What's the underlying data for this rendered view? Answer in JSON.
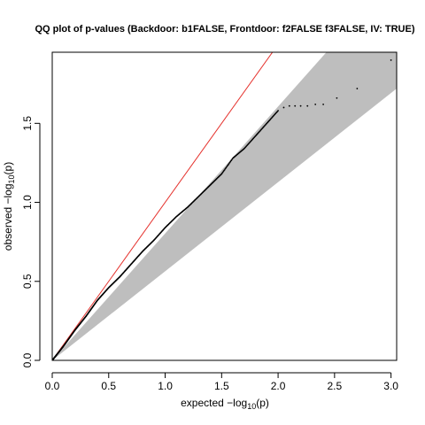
{
  "chart_data": {
    "type": "scatter",
    "title": "QQ plot of p-values (Backdoor: b1FALSE, Frontdoor: f2FALSE f3FALSE, IV: TRUE)",
    "xlabel": {
      "prefix": "expected ",
      "minus": "−",
      "log": "log",
      "sub": "10",
      "arg": "(p)"
    },
    "ylabel": {
      "prefix": "observed ",
      "minus": "−",
      "log": "log",
      "sub": "10",
      "arg": "(p)"
    },
    "xlim": [
      0,
      3.05
    ],
    "ylim": [
      0,
      1.95
    ],
    "x_ticks": [
      {
        "v": 0,
        "label": "0.0"
      },
      {
        "v": 0.5,
        "label": "0.5"
      },
      {
        "v": 1,
        "label": "1.0"
      },
      {
        "v": 1.5,
        "label": "1.5"
      },
      {
        "v": 2,
        "label": "2.0"
      },
      {
        "v": 2.5,
        "label": "2.5"
      },
      {
        "v": 3,
        "label": "3.0"
      }
    ],
    "y_ticks": [
      {
        "v": 0,
        "label": "0.0"
      },
      {
        "v": 0.5,
        "label": "0.5"
      },
      {
        "v": 1,
        "label": "1.0"
      },
      {
        "v": 1.5,
        "label": "1.5"
      }
    ],
    "reference_line": {
      "slope": 1,
      "intercept": 0,
      "color": "#e5322d"
    },
    "confidence_band": {
      "color": "#bebebe",
      "upper_at_xmax": 2.45,
      "lower_at_xmax": 1.72
    },
    "points": {
      "color": "#000000",
      "curve_x": [
        0,
        0.1,
        0.2,
        0.3,
        0.4,
        0.5,
        0.6,
        0.7,
        0.8,
        0.9,
        1.0,
        1.1,
        1.2,
        1.3,
        1.4,
        1.5,
        1.6,
        1.7,
        1.8,
        1.9,
        2.0
      ],
      "curve_y": [
        0,
        0.09,
        0.19,
        0.28,
        0.38,
        0.46,
        0.53,
        0.61,
        0.69,
        0.76,
        0.84,
        0.91,
        0.97,
        1.04,
        1.11,
        1.18,
        1.28,
        1.34,
        1.42,
        1.5,
        1.58
      ],
      "n_curve": 430,
      "tail": [
        [
          2.05,
          1.6
        ],
        [
          2.1,
          1.61
        ],
        [
          2.15,
          1.61
        ],
        [
          2.2,
          1.61
        ],
        [
          2.26,
          1.61
        ],
        [
          2.33,
          1.62
        ],
        [
          2.4,
          1.62
        ],
        [
          2.52,
          1.66
        ],
        [
          2.7,
          1.72
        ],
        [
          3.0,
          1.9
        ]
      ]
    }
  }
}
